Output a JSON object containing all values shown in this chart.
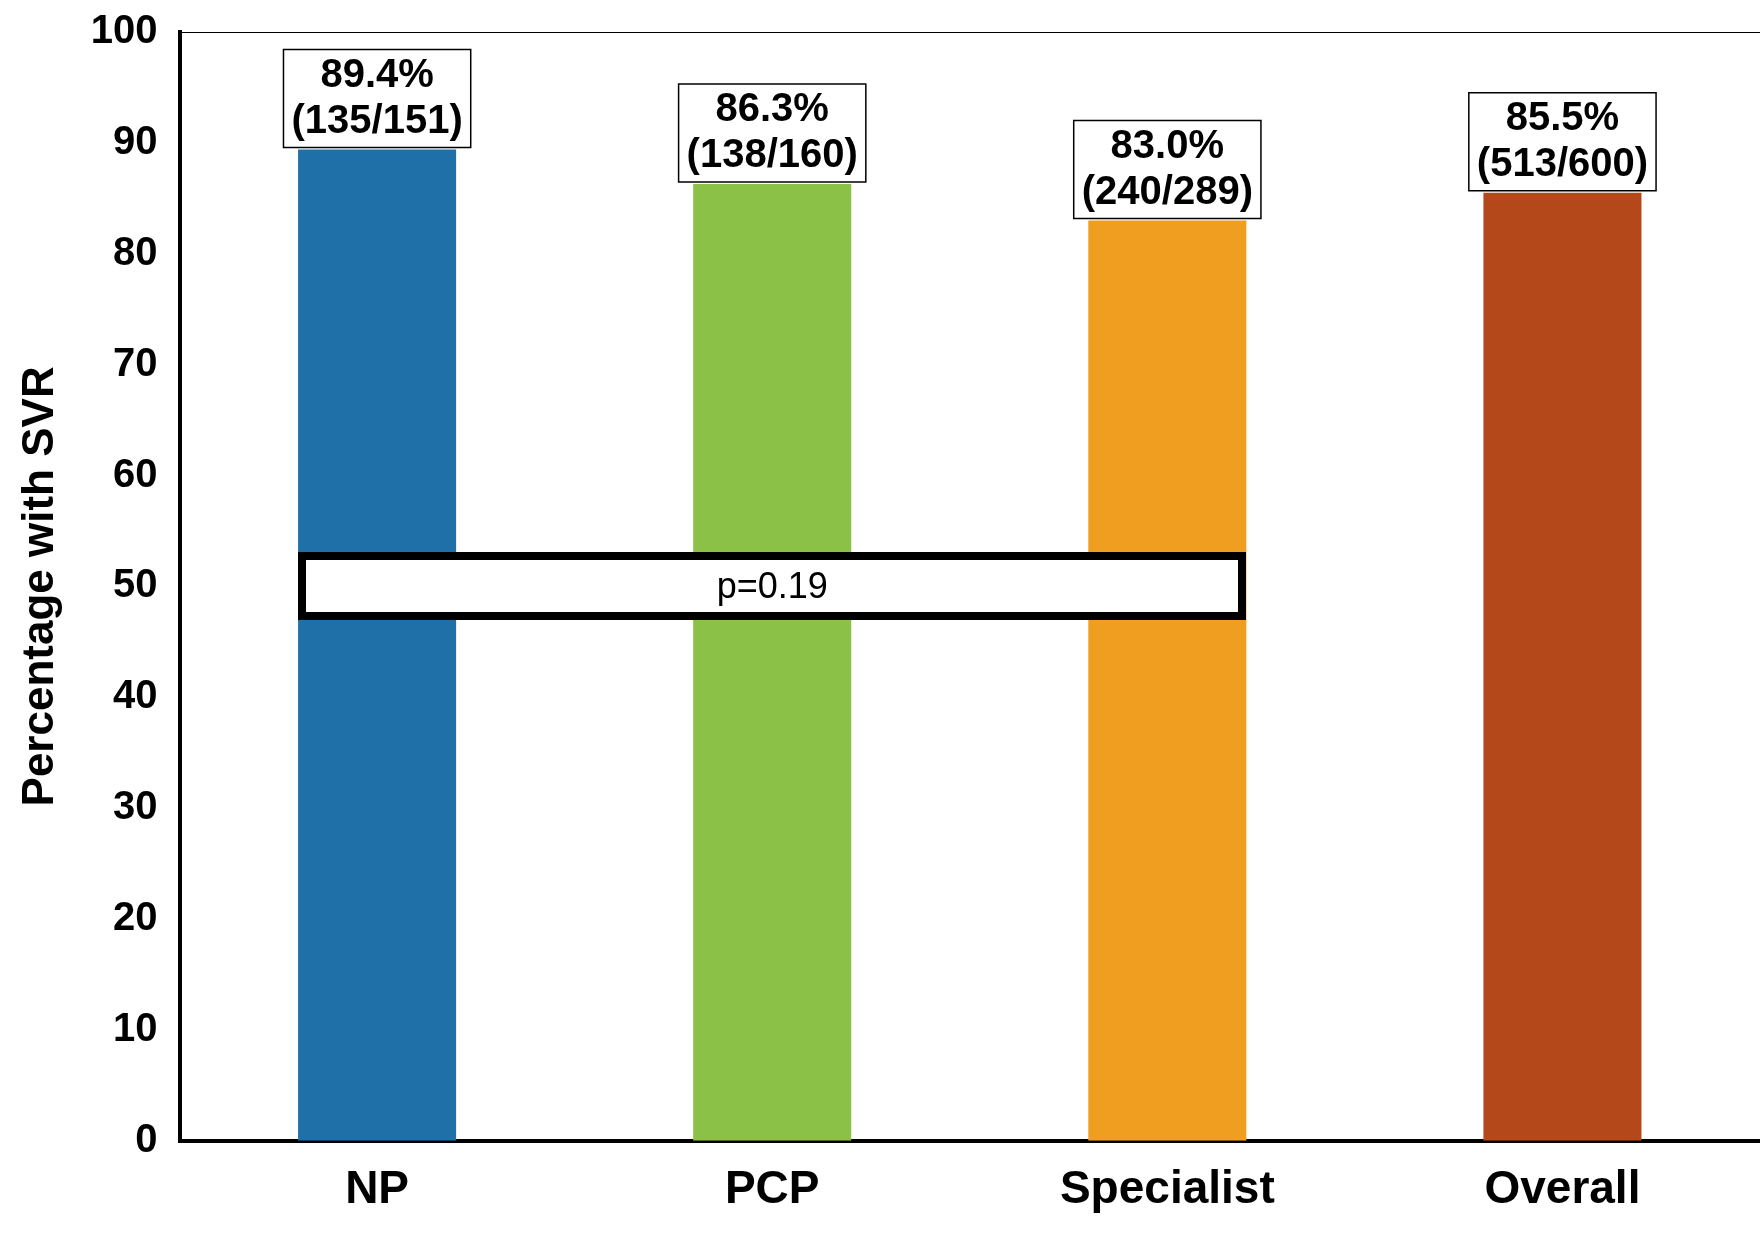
{
  "chart_data": {
    "type": "bar",
    "ylabel": "Percentage with SVR",
    "categories": [
      "NP",
      "PCP",
      "Specialist",
      "Overall"
    ],
    "values": [
      89.4,
      86.3,
      83.0,
      85.5
    ],
    "colors": [
      "#1f6fa8",
      "#8bc147",
      "#f09e1f",
      "#b5481a"
    ],
    "value_labels": [
      "89.4%\n(135/151)",
      "86.3%\n(138/160)",
      "83.0%\n(240/289)",
      "85.5%\n(513/600)"
    ],
    "ylim": [
      0,
      100
    ],
    "yticks": [
      0,
      10,
      20,
      30,
      40,
      50,
      60,
      70,
      80,
      90,
      100
    ],
    "grid": false,
    "legend": false,
    "annotations": [
      "p=0.19"
    ]
  }
}
